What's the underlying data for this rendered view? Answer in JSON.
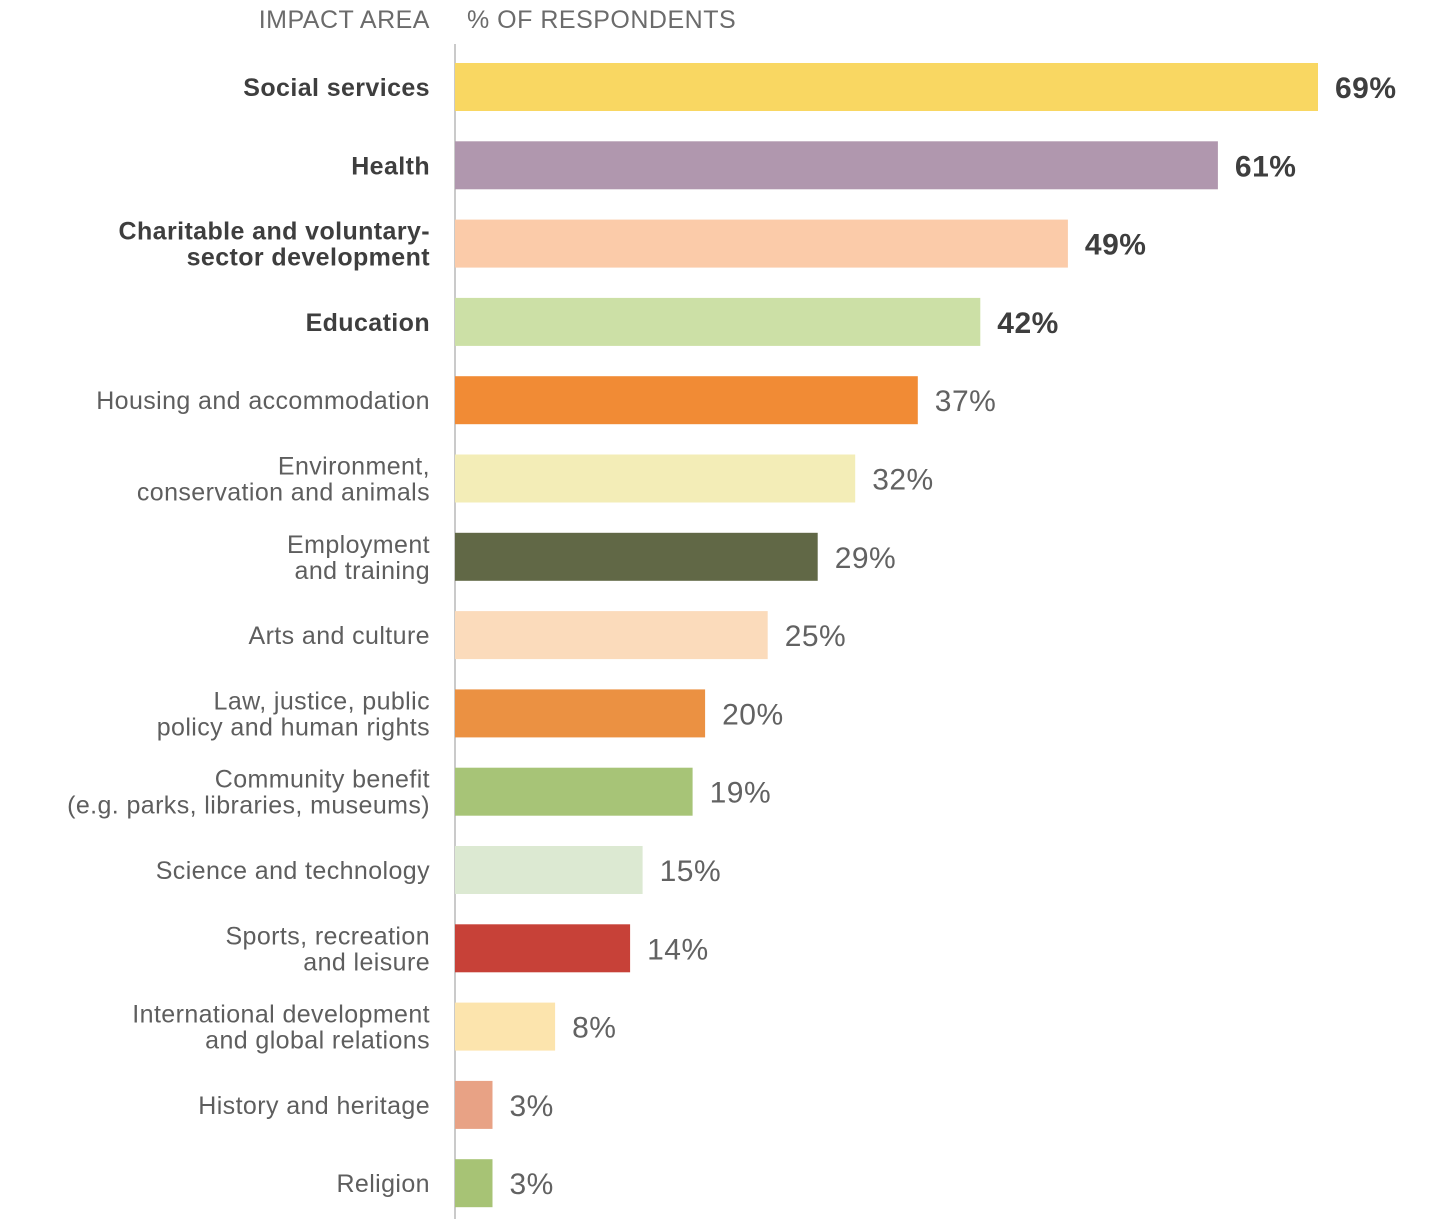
{
  "headers": {
    "category": "IMPACT AREA",
    "value": "% OF RESPONDENTS"
  },
  "chart_data": {
    "type": "bar",
    "orientation": "horizontal",
    "value_suffix": "%",
    "xlim": [
      0,
      69
    ],
    "grid": false,
    "legend": "none",
    "categories": [
      [
        "Social services"
      ],
      [
        "Health"
      ],
      [
        "Charitable and voluntary-",
        "sector development"
      ],
      [
        "Education"
      ],
      [
        "Housing and accommodation"
      ],
      [
        "Environment,",
        "conservation and animals"
      ],
      [
        "Employment",
        "and training"
      ],
      [
        "Arts and culture"
      ],
      [
        "Law, justice, public",
        "policy and human rights"
      ],
      [
        "Community benefit",
        "(e.g. parks, libraries, museums)"
      ],
      [
        "Science and technology"
      ],
      [
        "Sports, recreation",
        "and leisure"
      ],
      [
        "International development",
        "and global relations"
      ],
      [
        "History and heritage"
      ],
      [
        "Religion"
      ]
    ],
    "values": [
      69,
      61,
      49,
      42,
      37,
      32,
      29,
      25,
      20,
      19,
      15,
      14,
      8,
      3,
      3
    ],
    "value_labels": [
      "69%",
      "61%",
      "49%",
      "42%",
      "37%",
      "32%",
      "29%",
      "25%",
      "20%",
      "19%",
      "15%",
      "14%",
      "8%",
      "3%",
      "3%"
    ],
    "emphasized": [
      true,
      true,
      true,
      true,
      false,
      false,
      false,
      false,
      false,
      false,
      false,
      false,
      false,
      false,
      false
    ],
    "colors": [
      "#f9d762",
      "#b097ae",
      "#fbcba9",
      "#cce0a6",
      "#f18b35",
      "#f3edb7",
      "#616846",
      "#fbdbbb",
      "#eb9142",
      "#a7c477",
      "#dce9d2",
      "#c74138",
      "#fce4ad",
      "#e8a285",
      "#a7c375"
    ]
  }
}
